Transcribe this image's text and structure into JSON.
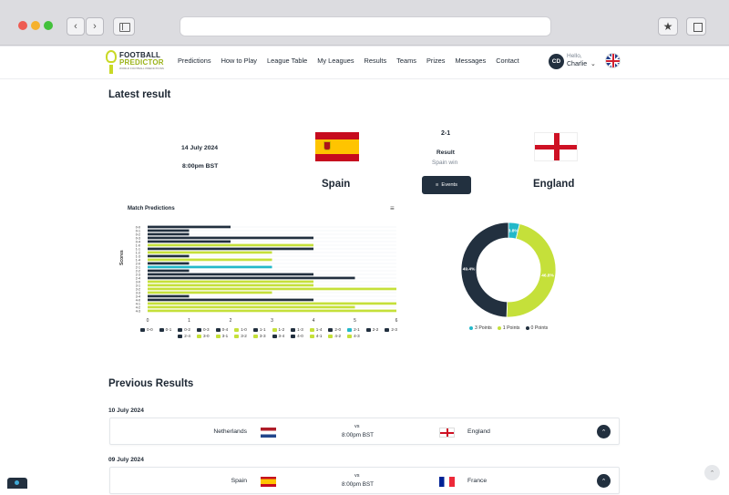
{
  "site": {
    "logo_line1": "FOOTBALL",
    "logo_line2": "PREDICTOR",
    "logo_tagline": "WORLD FOOTBALL PREDICTIONS"
  },
  "nav": {
    "items": [
      "Predictions",
      "How to Play",
      "League Table",
      "My Leagues",
      "Results",
      "Teams",
      "Prizes",
      "Messages",
      "Contact"
    ]
  },
  "user": {
    "initials": "CD",
    "greeting": "Hello,",
    "name": "Charlie"
  },
  "latest": {
    "title": "Latest result",
    "date": "14 July 2024",
    "time": "8:00pm BST",
    "home_team": "Spain",
    "away_team": "England",
    "score": "2-1",
    "result_label": "Result",
    "result_detail": "Spain win",
    "events_label": "Events"
  },
  "bar_chart": {
    "title": "Match Predictions",
    "ylabel": "Scores"
  },
  "chart_data": [
    {
      "type": "bar",
      "orientation": "horizontal",
      "title": "Match Predictions",
      "ylabel": "Scores",
      "xlim": [
        0,
        6
      ],
      "xticks": [
        0,
        1,
        2,
        3,
        4,
        5,
        6
      ],
      "categories": [
        "0-0",
        "0-1",
        "0-2",
        "0-3",
        "0-4",
        "1-0",
        "1-1",
        "1-2",
        "1-3",
        "1-4",
        "2-0",
        "2-1",
        "2-2",
        "2-3",
        "2-4",
        "3-0",
        "3-1",
        "3-2",
        "3-3",
        "3-4",
        "4-0",
        "4-1",
        "4-2",
        "4-3"
      ],
      "values": [
        2,
        1,
        1,
        4,
        2,
        4,
        4,
        3,
        1,
        3,
        1,
        3,
        1,
        4,
        5,
        4,
        4,
        6,
        3,
        1,
        4,
        6,
        5,
        6
      ],
      "colors": [
        "#22303f",
        "#22303f",
        "#22303f",
        "#22303f",
        "#22303f",
        "#c5e03a",
        "#22303f",
        "#c5e03a",
        "#22303f",
        "#c5e03a",
        "#22303f",
        "#23b8c9",
        "#22303f",
        "#22303f",
        "#22303f",
        "#c5e03a",
        "#c5e03a",
        "#c5e03a",
        "#c5e03a",
        "#22303f",
        "#22303f",
        "#c5e03a",
        "#c5e03a",
        "#c5e03a"
      ]
    },
    {
      "type": "pie",
      "donut": true,
      "labels": [
        "3 Points",
        "1 Points",
        "0 Points"
      ],
      "values": [
        3.8,
        46.8,
        49.4
      ],
      "display_labels": [
        "3.8%",
        "46.8%",
        "49.4%"
      ],
      "colors": [
        "#23b8c9",
        "#c5e03a",
        "#22303f"
      ],
      "legend_position": "bottom"
    }
  ],
  "previous": {
    "title": "Previous Results",
    "days": [
      {
        "date": "10 July 2024",
        "home": "Netherlands",
        "vs": "vs",
        "time": "8:00pm BST",
        "away": "England"
      },
      {
        "date": "09 July 2024",
        "home": "Spain",
        "vs": "vs",
        "time": "8:00pm BST",
        "away": "France"
      }
    ]
  },
  "icons": {
    "expand": "chevron-up-icon",
    "scroll_top": "arrow-up-icon",
    "events": "sliders-icon",
    "menu": "hamburger-icon"
  }
}
